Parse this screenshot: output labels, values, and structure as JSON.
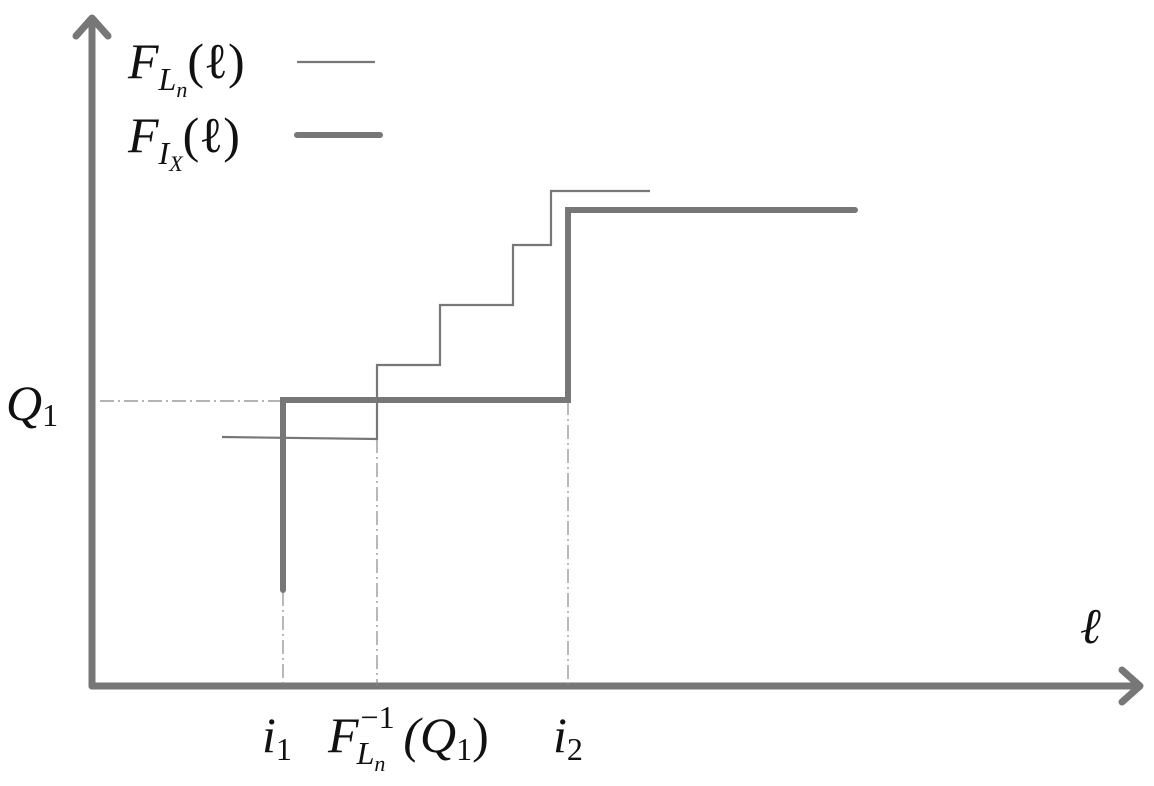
{
  "legend": [
    {
      "main": "F",
      "sub": "L",
      "subsub": "n",
      "arg": "(ℓ)"
    },
    {
      "main": "F",
      "sub": "I",
      "subsub": "X",
      "arg": "(ℓ)"
    }
  ],
  "x_axis_label": "ℓ",
  "y_marker": {
    "main": "Q",
    "sub": "1"
  },
  "x_markers": [
    {
      "main": "i",
      "sub": "1"
    },
    {
      "main": "F",
      "sup": "−1",
      "sub": "L",
      "subsub": "n",
      "arg": "(Q",
      "argsub": "1",
      "close": ")"
    },
    {
      "main": "i",
      "sub": "2"
    }
  ]
}
